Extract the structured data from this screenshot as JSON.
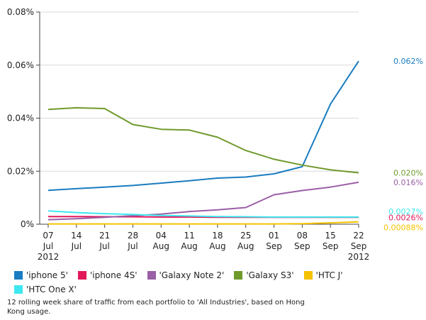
{
  "chart_data": {
    "type": "line",
    "categories": [
      [
        "07",
        "Jul",
        "2012"
      ],
      [
        "14",
        "Jul",
        ""
      ],
      [
        "21",
        "Jul",
        ""
      ],
      [
        "28",
        "Jul",
        ""
      ],
      [
        "04",
        "Aug",
        ""
      ],
      [
        "11",
        "Aug",
        ""
      ],
      [
        "18",
        "Aug",
        ""
      ],
      [
        "25",
        "Aug",
        ""
      ],
      [
        "01",
        "Sep",
        ""
      ],
      [
        "08",
        "Sep",
        ""
      ],
      [
        "15",
        "Sep",
        ""
      ],
      [
        "22",
        "Sep",
        "2012"
      ]
    ],
    "y_ticks": [
      "0%",
      "0.02%",
      "0.04%",
      "0.06%",
      "0.08%"
    ],
    "ylim": [
      0,
      0.08
    ],
    "y_tick_values": [
      0,
      0.02,
      0.04,
      0.06,
      0.08
    ],
    "series": [
      {
        "name": "'iphone 5'",
        "color": "#1a7cc1",
        "end_label": "0.062%",
        "label_offset": 0,
        "values": [
          0.0128,
          0.0134,
          0.014,
          0.0146,
          0.0155,
          0.0164,
          0.0174,
          0.0178,
          0.019,
          0.0217,
          0.0453,
          0.0615
        ]
      },
      {
        "name": "'iphone 4S'",
        "color": "#e2185b",
        "end_label": "0.0026%",
        "label_offset": 0,
        "values": [
          0.0029,
          0.0029,
          0.0028,
          0.0028,
          0.0027,
          0.0027,
          0.0026,
          0.0026,
          0.0026,
          0.0026,
          0.0026,
          0.0026
        ]
      },
      {
        "name": "'Galaxy Note 2'",
        "color": "#9b5fa6",
        "end_label": "0.016%",
        "label_offset": 0,
        "values": [
          0.0017,
          0.0021,
          0.0026,
          0.0032,
          0.0038,
          0.0048,
          0.0054,
          0.0063,
          0.0111,
          0.0127,
          0.014,
          0.0158
        ]
      },
      {
        "name": "'Galaxy S3'",
        "color": "#6f9a2c",
        "end_label": "0.020%",
        "label_offset": 0,
        "values": [
          0.0433,
          0.0439,
          0.0436,
          0.0376,
          0.0358,
          0.0355,
          0.0328,
          0.0278,
          0.0245,
          0.0223,
          0.0205,
          0.0194
        ]
      },
      {
        "name": "'HTC J'",
        "color": "#f5c200",
        "end_label": "0.00088%",
        "label_offset": 1,
        "values": [
          0.0001,
          0.0001,
          0.0001,
          0.0001,
          0.0001,
          0.0001,
          0.0001,
          0.0001,
          0.0001,
          0.0002,
          0.0005,
          0.0009
        ]
      },
      {
        "name": "'HTC One X'",
        "color": "#3de8f0",
        "end_label": "0.0027%",
        "label_offset": -1,
        "values": [
          0.005,
          0.0044,
          0.004,
          0.0037,
          0.0033,
          0.0031,
          0.0029,
          0.0028,
          0.0027,
          0.0027,
          0.0027,
          0.0027
        ]
      }
    ]
  },
  "footnote": "12 rolling week share of traffic from each portfolio to 'All Industries', based on Hong Kong usage."
}
